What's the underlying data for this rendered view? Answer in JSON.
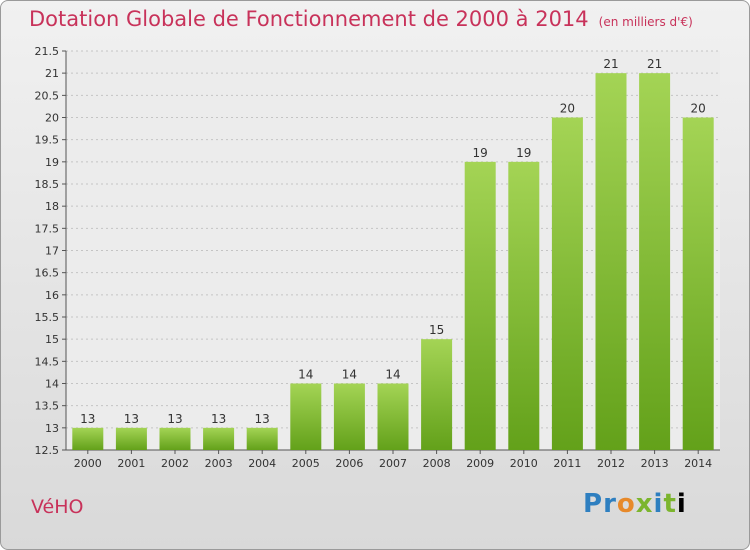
{
  "header": {
    "title": "Dotation Globale de Fonctionnement de 2000 à 2014",
    "unit": "(en milliers d'€)"
  },
  "footer": {
    "commune": "VéHO",
    "logo_text": "Proxiti"
  },
  "colors": {
    "title": "#c8325a",
    "bar_top": "#a4d455",
    "bar_bottom": "#63a11a"
  },
  "chart_data": {
    "type": "bar",
    "title": "Dotation Globale de Fonctionnement de 2000 à 2014",
    "xlabel": "",
    "ylabel": "",
    "categories": [
      "2000",
      "2001",
      "2002",
      "2003",
      "2004",
      "2005",
      "2006",
      "2007",
      "2008",
      "2009",
      "2010",
      "2011",
      "2012",
      "2013",
      "2014"
    ],
    "values": [
      13,
      13,
      13,
      13,
      13,
      14,
      14,
      14,
      15,
      19,
      19,
      20,
      21,
      21,
      20
    ],
    "ylim": [
      12.5,
      21.5
    ],
    "yticks": [
      "12.5",
      "13",
      "13.5",
      "14",
      "14.5",
      "15",
      "15.5",
      "16",
      "16.5",
      "17",
      "17.5",
      "18",
      "18.5",
      "19",
      "19.5",
      "20",
      "20.5",
      "21",
      "21.5"
    ],
    "grid": true,
    "legend": "none"
  }
}
